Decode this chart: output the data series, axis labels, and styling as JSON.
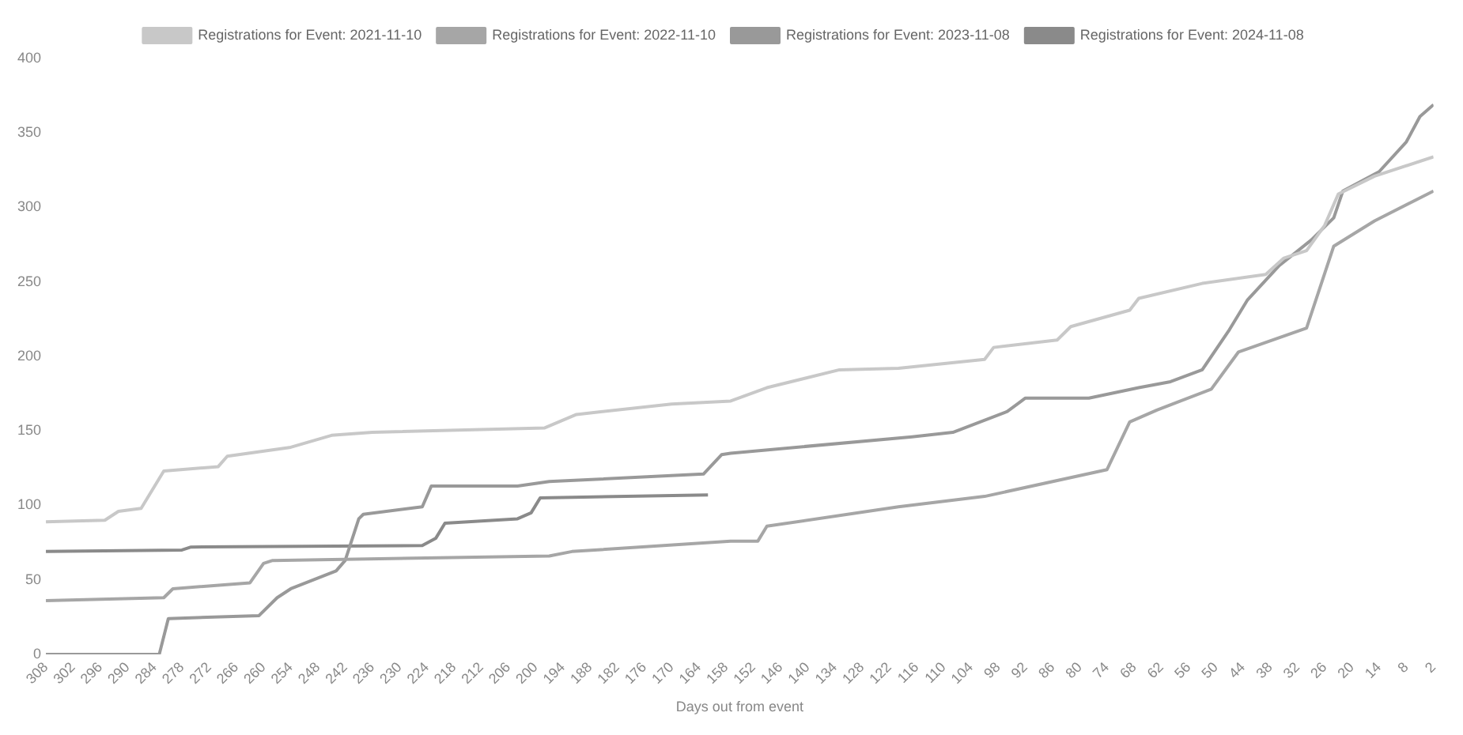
{
  "chart_data": {
    "type": "line",
    "xlabel": "Days out from event",
    "legend": "top",
    "grid": false,
    "marker": "none",
    "line_style": "solid",
    "xlim": [
      308,
      2
    ],
    "xticks": [
      308,
      302,
      296,
      290,
      284,
      278,
      272,
      266,
      260,
      254,
      248,
      242,
      236,
      230,
      224,
      218,
      212,
      206,
      200,
      194,
      188,
      182,
      176,
      170,
      164,
      158,
      152,
      146,
      140,
      134,
      128,
      122,
      116,
      110,
      104,
      98,
      92,
      86,
      80,
      74,
      68,
      62,
      56,
      50,
      44,
      38,
      32,
      26,
      20,
      14,
      8,
      2
    ],
    "ylim": [
      0,
      400
    ],
    "yticks": [
      0,
      50,
      100,
      150,
      200,
      250,
      300,
      350,
      400
    ],
    "series": [
      {
        "name": "Registrations for Event: 2021-11-10",
        "color": "#c8c8c8",
        "x": [
          308,
          295,
          292,
          287,
          282,
          270,
          268,
          254,
          245,
          236,
          198,
          191,
          170,
          157,
          149,
          133,
          120,
          101,
          99,
          85,
          82,
          69,
          67,
          53,
          39,
          35,
          30,
          26,
          23,
          15,
          2
        ],
        "values": [
          89,
          90,
          96,
          98,
          123,
          126,
          133,
          139,
          147,
          149,
          152,
          161,
          168,
          170,
          179,
          191,
          192,
          198,
          206,
          211,
          220,
          231,
          239,
          249,
          255,
          266,
          271,
          288,
          309,
          321,
          334
        ]
      },
      {
        "name": "Registrations for Event: 2022-11-10",
        "color": "#a6a6a6",
        "x": [
          308,
          282,
          280,
          263,
          260,
          258,
          197,
          192,
          157,
          151,
          149,
          120,
          101,
          74,
          69,
          63,
          51,
          45,
          30,
          24,
          15,
          2
        ],
        "values": [
          36,
          38,
          44,
          48,
          61,
          63,
          66,
          69,
          76,
          76,
          86,
          99,
          106,
          124,
          156,
          164,
          178,
          203,
          219,
          274,
          291,
          311
        ]
      },
      {
        "name": "Registrations for Event: 2023-11-08",
        "color": "#999999",
        "x": [
          308,
          283,
          281,
          261,
          257,
          254,
          244,
          242,
          239,
          238,
          225,
          223,
          204,
          197,
          163,
          159,
          157,
          117,
          108,
          96,
          92,
          78,
          67,
          60,
          53,
          47,
          43,
          36,
          29,
          24,
          22,
          14,
          8,
          5,
          2
        ],
        "values": [
          0,
          0,
          24,
          26,
          38,
          44,
          56,
          63,
          91,
          94,
          99,
          113,
          113,
          116,
          121,
          134,
          135,
          146,
          149,
          163,
          172,
          172,
          179,
          183,
          191,
          218,
          238,
          261,
          278,
          293,
          311,
          324,
          344,
          361,
          369
        ]
      },
      {
        "name": "Registrations for Event: 2024-11-08",
        "color": "#8a8a8a",
        "x": [
          308,
          278,
          276,
          225,
          222,
          220,
          204,
          201,
          199,
          162
        ],
        "values": [
          69,
          70,
          72,
          73,
          78,
          88,
          91,
          95,
          105,
          107
        ]
      }
    ]
  }
}
